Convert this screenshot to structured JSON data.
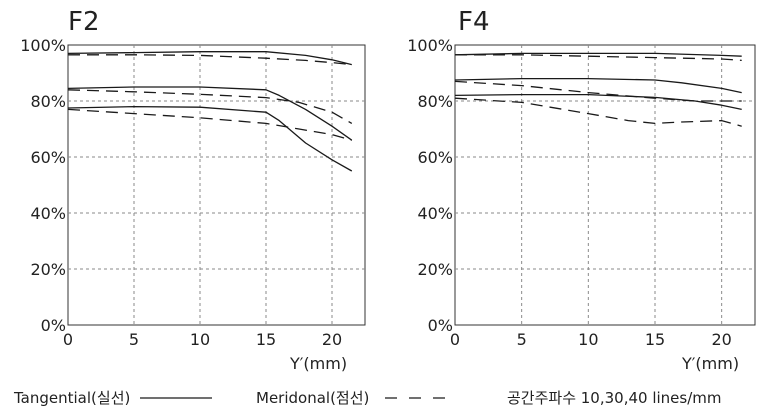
{
  "chart_data": [
    {
      "type": "line",
      "title": "F2",
      "xlabel": "Y′(mm)",
      "ylabel": "",
      "xlim": [
        0,
        22.5
      ],
      "ylim": [
        0,
        100
      ],
      "xticks": [
        "0",
        "5",
        "10",
        "15",
        "20"
      ],
      "yticks": [
        "0%",
        "20%",
        "40%",
        "60%",
        "80%",
        "100%"
      ],
      "grid": true,
      "series": [
        {
          "style": "solid",
          "x": [
            0,
            5,
            10,
            15,
            18,
            20,
            21.5
          ],
          "y": [
            97,
            97.3,
            97.6,
            97.6,
            96.3,
            94.7,
            93
          ]
        },
        {
          "style": "dashed",
          "x": [
            0,
            5,
            10,
            15,
            18,
            20,
            21.5
          ],
          "y": [
            96.5,
            96.5,
            96.3,
            95.3,
            94.5,
            93.7,
            93
          ]
        },
        {
          "style": "solid",
          "x": [
            0,
            5,
            10,
            15,
            16,
            18,
            20,
            21.5
          ],
          "y": [
            84.5,
            85,
            85,
            84,
            82,
            77,
            71,
            66
          ]
        },
        {
          "style": "dashed",
          "x": [
            0,
            5,
            10,
            15,
            17.5,
            20,
            21.5
          ],
          "y": [
            84,
            83.3,
            82.4,
            81.2,
            79.5,
            76,
            72
          ]
        },
        {
          "style": "solid",
          "x": [
            0,
            5,
            10,
            15,
            16,
            18,
            20,
            21.5
          ],
          "y": [
            77.5,
            78,
            77.8,
            76,
            73,
            65,
            59,
            55
          ]
        },
        {
          "style": "dashed",
          "x": [
            0,
            5,
            10,
            15,
            17.5,
            20,
            21.5
          ],
          "y": [
            77,
            75.5,
            74,
            72,
            70,
            68,
            66
          ]
        }
      ]
    },
    {
      "type": "line",
      "title": "F4",
      "xlabel": "Y′(mm)",
      "ylabel": "",
      "xlim": [
        0,
        22.5
      ],
      "ylim": [
        0,
        100
      ],
      "xticks": [
        "0",
        "5",
        "10",
        "15",
        "20"
      ],
      "yticks": [
        "0%",
        "20%",
        "40%",
        "60%",
        "80%",
        "100%"
      ],
      "grid": true,
      "series": [
        {
          "style": "solid",
          "x": [
            0,
            5,
            10,
            15,
            20,
            21.5
          ],
          "y": [
            96.5,
            97,
            97,
            97,
            96.3,
            96
          ]
        },
        {
          "style": "dashed",
          "x": [
            0,
            5,
            10,
            15,
            20,
            21.5
          ],
          "y": [
            96.5,
            96.5,
            96,
            95.5,
            95,
            94.5
          ]
        },
        {
          "style": "solid",
          "x": [
            0,
            5,
            10,
            15,
            17,
            20,
            21.5
          ],
          "y": [
            87.5,
            88,
            88,
            87.5,
            86.5,
            84.5,
            83
          ]
        },
        {
          "style": "dashed",
          "x": [
            0,
            5,
            10,
            15,
            18,
            20,
            21.5
          ],
          "y": [
            87,
            85.5,
            83,
            81,
            80,
            80,
            80
          ]
        },
        {
          "style": "solid",
          "x": [
            0,
            5,
            10,
            15,
            18,
            20,
            21.5
          ],
          "y": [
            82,
            82.3,
            82.3,
            81.3,
            80,
            78.5,
            77
          ]
        },
        {
          "style": "dashed",
          "x": [
            0,
            5,
            10,
            13,
            15,
            17,
            20,
            21.5
          ],
          "y": [
            81,
            79.5,
            75.5,
            73,
            72,
            72.5,
            73,
            71
          ]
        }
      ]
    }
  ],
  "legend": {
    "tangential_label": "Tangential(실선)",
    "meridional_label": "Meridonal(점선)",
    "frequency_label": "공간주파수 10,30,40 lines/mm"
  },
  "colors": {
    "line": "#1a1a1a",
    "grid": "#8a8a8a",
    "frame": "#333333"
  }
}
